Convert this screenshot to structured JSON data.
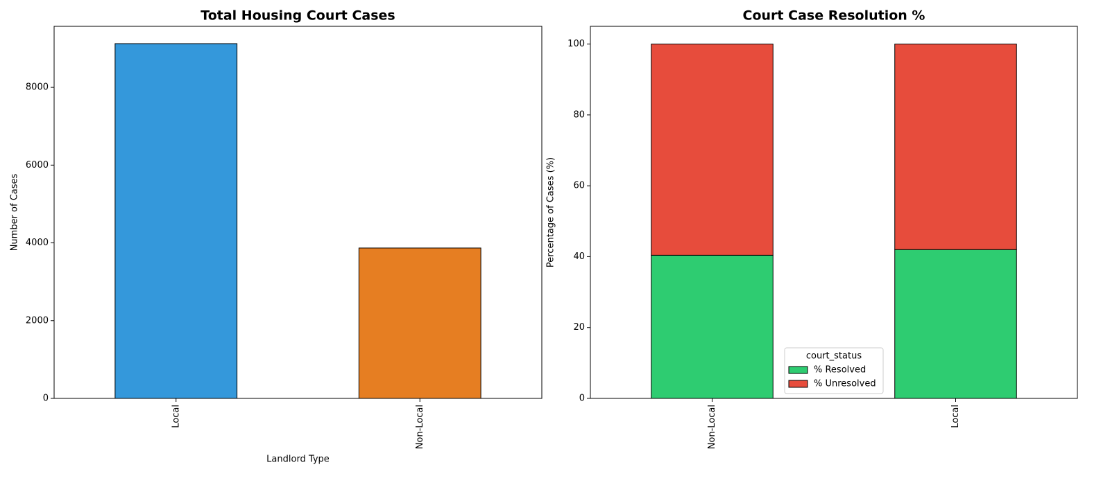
{
  "chart_data": [
    {
      "type": "bar",
      "title": "Total Housing Court Cases",
      "xlabel": "Landlord Type",
      "ylabel": "Number of Cases",
      "categories": [
        "Local",
        "Non-Local"
      ],
      "values": [
        9125,
        3868
      ],
      "colors": [
        "#3498db",
        "#e67e22"
      ],
      "ylim": [
        0,
        9570
      ],
      "yticks": [
        0,
        2000,
        4000,
        6000,
        8000
      ]
    },
    {
      "type": "stacked_bar",
      "title": "Court Case Resolution %",
      "ylabel": "Percentage of Cases (%)",
      "categories": [
        "Non-Local",
        "Local"
      ],
      "series": [
        {
          "name": "% Resolved",
          "color": "#2ecc71",
          "values": [
            40.4,
            42.0
          ]
        },
        {
          "name": "% Unresolved",
          "color": "#e74c3c",
          "values": [
            59.6,
            58.0
          ]
        }
      ],
      "ylim": [
        0,
        105
      ],
      "yticks": [
        0,
        20,
        40,
        60,
        80,
        100
      ],
      "legend_title": "court_status",
      "legend": "lower center"
    }
  ]
}
